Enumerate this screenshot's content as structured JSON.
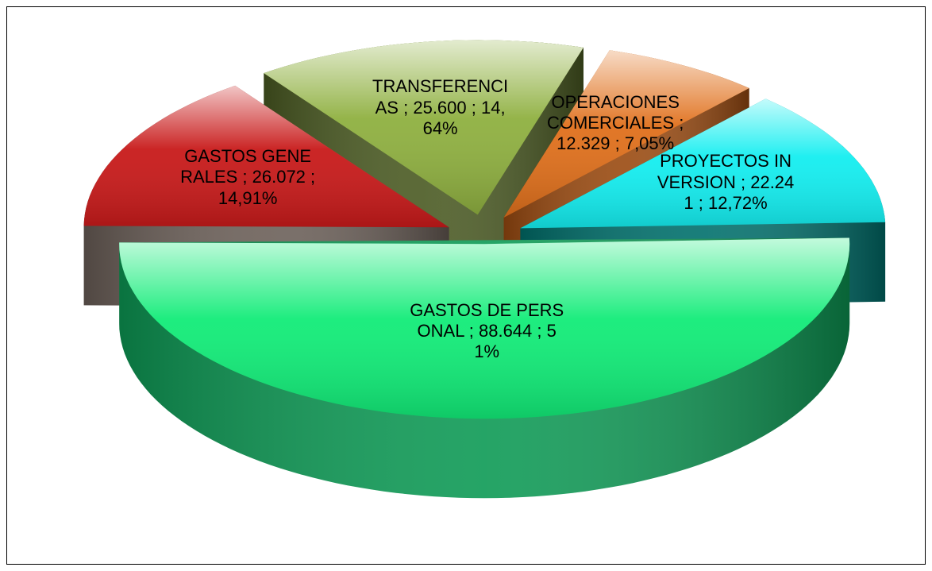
{
  "chart_data": {
    "type": "pie3d",
    "categories": [
      "GASTOS DE PERSONAL",
      "GASTOS GENERALES",
      "TRANSFERENCIAS",
      "OPERACIONES COMERCIALES",
      "PROYECTOS INVERSION"
    ],
    "values": [
      88644,
      26072,
      25600,
      12329,
      22241
    ],
    "value_labels": [
      "88.644",
      "26.072",
      "25.600",
      "12.329",
      "22.241"
    ],
    "percent_labels": [
      "51%",
      "14,91%",
      "14,64%",
      "7,05%",
      "12,72%"
    ],
    "separator": ";",
    "colors": [
      "#12ec78",
      "#c81a1a",
      "#8fb040",
      "#e0701c",
      "#14eef0"
    ],
    "side_colors": [
      "#0d9a55",
      "#6b5f58",
      "#4a5a22",
      "#9a4a10",
      "#00706c"
    ]
  }
}
